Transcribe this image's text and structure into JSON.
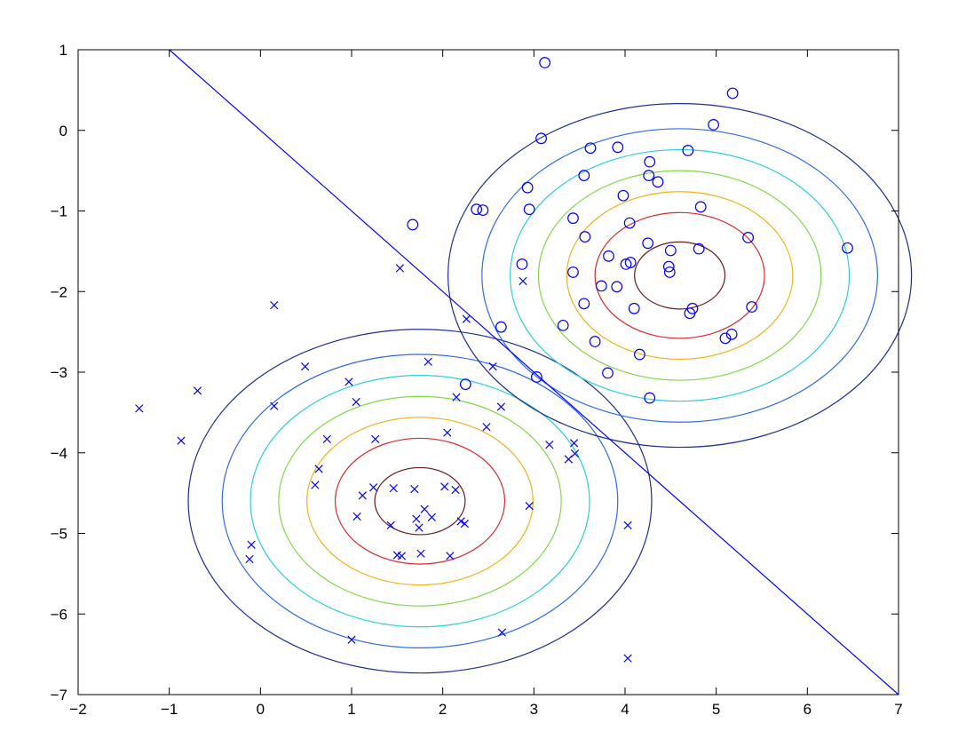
{
  "chart_data": {
    "type": "scatter",
    "title": "",
    "xlabel": "",
    "ylabel": "",
    "xlim": [
      -2,
      7
    ],
    "ylim": [
      -7,
      1
    ],
    "grid": false,
    "xticks": [
      -2,
      -1,
      0,
      1,
      2,
      3,
      4,
      5,
      6,
      7
    ],
    "yticks": [
      1,
      0,
      -1,
      -2,
      -3,
      -4,
      -5,
      -6,
      -7
    ],
    "xtick_labels": [
      "−2",
      "−1",
      "0",
      "1",
      "2",
      "3",
      "4",
      "5",
      "6",
      "7"
    ],
    "ytick_labels": [
      "1",
      "0",
      "−1",
      "−2",
      "−3",
      "−4",
      "−5",
      "−6",
      "−7"
    ],
    "series": [
      {
        "marker": "x",
        "color": "#0000ff",
        "points": [
          [
            -1.33,
            -3.45
          ],
          [
            -0.87,
            -3.85
          ],
          [
            -0.69,
            -3.23
          ],
          [
            -0.12,
            -5.32
          ],
          [
            -0.1,
            -5.14
          ],
          [
            0.15,
            -2.17
          ],
          [
            0.15,
            -3.42
          ],
          [
            0.49,
            -2.93
          ],
          [
            0.6,
            -4.4
          ],
          [
            0.64,
            -4.2
          ],
          [
            0.73,
            -3.83
          ],
          [
            0.97,
            -3.12
          ],
          [
            1.0,
            -6.32
          ],
          [
            1.05,
            -3.37
          ],
          [
            1.06,
            -4.79
          ],
          [
            1.12,
            -4.53
          ],
          [
            1.24,
            -4.43
          ],
          [
            1.26,
            -3.83
          ],
          [
            1.43,
            -4.9
          ],
          [
            1.46,
            -4.44
          ],
          [
            1.53,
            -1.71
          ],
          [
            1.5,
            -5.27
          ],
          [
            1.55,
            -5.28
          ],
          [
            1.69,
            -4.45
          ],
          [
            1.71,
            -4.82
          ],
          [
            1.74,
            -4.93
          ],
          [
            1.76,
            -5.25
          ],
          [
            1.8,
            -4.7
          ],
          [
            1.84,
            -2.87
          ],
          [
            1.88,
            -4.8
          ],
          [
            2.02,
            -4.42
          ],
          [
            2.05,
            -3.75
          ],
          [
            2.08,
            -5.28
          ],
          [
            2.14,
            -4.46
          ],
          [
            2.15,
            -3.31
          ],
          [
            2.2,
            -4.85
          ],
          [
            2.24,
            -4.88
          ],
          [
            2.26,
            -2.34
          ],
          [
            2.48,
            -3.68
          ],
          [
            2.55,
            -2.93
          ],
          [
            2.64,
            -3.43
          ],
          [
            2.65,
            -6.23
          ],
          [
            2.88,
            -1.87
          ],
          [
            2.95,
            -4.66
          ],
          [
            3.17,
            -3.9
          ],
          [
            3.38,
            -4.08
          ],
          [
            3.44,
            -3.88
          ],
          [
            3.45,
            -4.01
          ],
          [
            4.03,
            -4.9
          ],
          [
            4.03,
            -6.55
          ]
        ]
      },
      {
        "marker": "o",
        "color": "#0000ff",
        "points": [
          [
            1.67,
            -1.17
          ],
          [
            2.25,
            -3.15
          ],
          [
            2.37,
            -0.98
          ],
          [
            2.44,
            -0.99
          ],
          [
            2.64,
            -2.44
          ],
          [
            2.87,
            -1.66
          ],
          [
            2.93,
            -0.71
          ],
          [
            2.95,
            -0.98
          ],
          [
            3.03,
            -3.06
          ],
          [
            3.08,
            -0.1
          ],
          [
            3.12,
            0.84
          ],
          [
            3.32,
            -2.42
          ],
          [
            3.43,
            -1.09
          ],
          [
            3.43,
            -1.76
          ],
          [
            3.55,
            -0.56
          ],
          [
            3.56,
            -1.32
          ],
          [
            3.55,
            -2.15
          ],
          [
            3.62,
            -0.22
          ],
          [
            3.67,
            -2.62
          ],
          [
            3.74,
            -1.93
          ],
          [
            3.81,
            -3.01
          ],
          [
            3.82,
            -1.56
          ],
          [
            3.92,
            -0.21
          ],
          [
            3.91,
            -1.94
          ],
          [
            3.98,
            -0.81
          ],
          [
            4.01,
            -1.66
          ],
          [
            4.05,
            -1.15
          ],
          [
            4.06,
            -1.64
          ],
          [
            4.1,
            -2.21
          ],
          [
            4.16,
            -2.78
          ],
          [
            4.25,
            -1.4
          ],
          [
            4.26,
            -0.56
          ],
          [
            4.27,
            -0.39
          ],
          [
            4.27,
            -3.32
          ],
          [
            4.36,
            -0.64
          ],
          [
            4.48,
            -1.69
          ],
          [
            4.49,
            -1.76
          ],
          [
            4.5,
            -1.49
          ],
          [
            4.69,
            -0.25
          ],
          [
            4.71,
            -2.27
          ],
          [
            4.74,
            -2.21
          ],
          [
            4.81,
            -1.47
          ],
          [
            4.83,
            -0.95
          ],
          [
            4.97,
            0.07
          ],
          [
            5.1,
            -2.58
          ],
          [
            5.17,
            -2.53
          ],
          [
            5.18,
            0.46
          ],
          [
            5.35,
            -1.33
          ],
          [
            5.39,
            -2.19
          ],
          [
            6.44,
            -1.46
          ]
        ]
      }
    ],
    "contours": {
      "level_colors": [
        "#6b1a1a",
        "#d92a2a",
        "#f0b21c",
        "#7fd94a",
        "#2ccfd8",
        "#2f6be6",
        "#1b2f8f"
      ],
      "gaussians": [
        {
          "center": [
            1.75,
            -4.6
          ],
          "sigma": [
            0.62,
            0.52
          ]
        },
        {
          "center": [
            4.6,
            -1.8
          ],
          "sigma": [
            0.62,
            0.52
          ]
        }
      ],
      "radii_multipliers": [
        0.8,
        1.5,
        2.0,
        2.5,
        3.0,
        3.5,
        4.1
      ]
    },
    "decision_boundary": {
      "color": "#0000ff",
      "points": [
        [
          -1.0,
          1.0
        ],
        [
          7.0,
          -7.0
        ]
      ]
    }
  }
}
